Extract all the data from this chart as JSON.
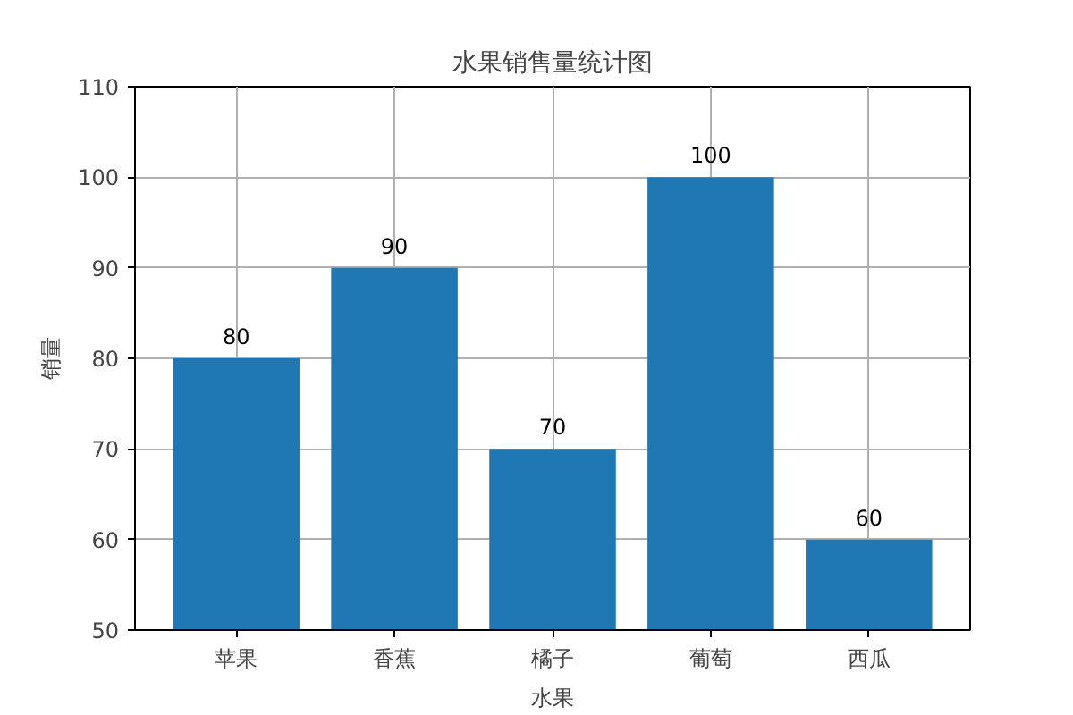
{
  "chart_data": {
    "type": "bar",
    "title": "水果销售量统计图",
    "xlabel": "水果",
    "ylabel": "销量",
    "categories": [
      "苹果",
      "香蕉",
      "橘子",
      "葡萄",
      "西瓜"
    ],
    "values": [
      80,
      90,
      70,
      100,
      60
    ],
    "color": "#1f77b4",
    "ylim": [
      50,
      110
    ],
    "yticks": [
      50,
      60,
      70,
      80,
      90,
      100,
      110
    ],
    "grid": true,
    "data_labels": true
  }
}
